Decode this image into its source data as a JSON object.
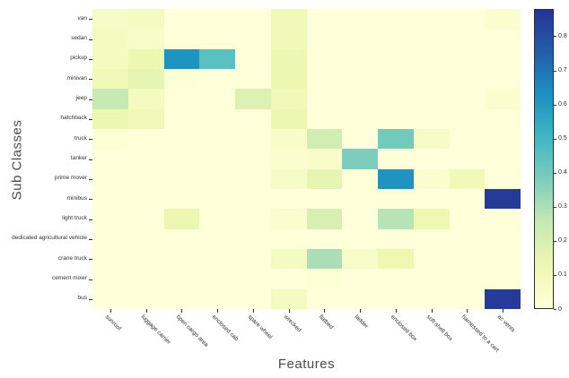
{
  "chart_data": {
    "type": "heatmap",
    "xlabel": "Features",
    "ylabel": "Sub Classes",
    "x_categories": [
      "sunroof",
      "luggage carrier",
      "open cargo area",
      "enclosed cab",
      "spare wheel",
      "wrecked",
      "flatbed",
      "ladder",
      "enclosed box",
      "soft shell box",
      "harnessed to a cart",
      "ac vents"
    ],
    "y_categories": [
      "van",
      "sedan",
      "pickup",
      "minivan",
      "jeep",
      "hatchback",
      "truck",
      "tanker",
      "prime mover",
      "minibus",
      "light truck",
      "dedicated agricultural vehicle",
      "crane truck",
      "cement mixer",
      "bus"
    ],
    "values": [
      [
        0.06,
        0.08,
        0.0,
        0.0,
        0.0,
        0.1,
        0.0,
        0.0,
        0.0,
        0.0,
        0.0,
        0.03
      ],
      [
        0.08,
        0.05,
        0.0,
        0.0,
        0.0,
        0.1,
        0.0,
        0.0,
        0.0,
        0.0,
        0.0,
        0.0
      ],
      [
        0.08,
        0.13,
        0.62,
        0.45,
        0.0,
        0.13,
        0.0,
        0.0,
        0.0,
        0.0,
        0.0,
        0.0
      ],
      [
        0.1,
        0.15,
        0.02,
        0.0,
        0.0,
        0.13,
        0.0,
        0.0,
        0.0,
        0.0,
        0.0,
        0.0
      ],
      [
        0.25,
        0.08,
        0.0,
        0.0,
        0.18,
        0.1,
        0.0,
        0.0,
        0.0,
        0.0,
        0.0,
        0.03
      ],
      [
        0.13,
        0.1,
        0.0,
        0.0,
        0.0,
        0.13,
        0.0,
        0.0,
        0.0,
        0.0,
        0.0,
        0.0
      ],
      [
        0.02,
        0.0,
        0.0,
        0.0,
        0.0,
        0.05,
        0.22,
        0.0,
        0.4,
        0.06,
        0.0,
        0.0
      ],
      [
        0.0,
        0.0,
        0.0,
        0.0,
        0.0,
        0.03,
        0.05,
        0.38,
        0.0,
        0.0,
        0.0,
        0.0
      ],
      [
        0.0,
        0.0,
        0.0,
        0.0,
        0.0,
        0.06,
        0.15,
        0.0,
        0.62,
        0.03,
        0.1,
        0.0
      ],
      [
        0.0,
        0.0,
        0.0,
        0.0,
        0.0,
        0.0,
        0.0,
        0.0,
        0.0,
        0.0,
        0.0,
        0.86
      ],
      [
        0.0,
        0.0,
        0.13,
        0.0,
        0.0,
        0.03,
        0.2,
        0.0,
        0.28,
        0.12,
        0.0,
        0.0
      ],
      [
        0.0,
        0.0,
        0.0,
        0.0,
        0.0,
        0.0,
        0.0,
        0.0,
        0.0,
        0.0,
        0.0,
        0.0
      ],
      [
        0.0,
        0.0,
        0.0,
        0.0,
        0.0,
        0.08,
        0.3,
        0.05,
        0.12,
        0.0,
        0.0,
        0.0
      ],
      [
        0.0,
        0.0,
        0.0,
        0.0,
        0.0,
        0.0,
        0.02,
        0.0,
        0.0,
        0.0,
        0.0,
        0.0
      ],
      [
        0.0,
        0.0,
        0.0,
        0.0,
        0.0,
        0.08,
        0.0,
        0.0,
        0.0,
        0.0,
        0.0,
        0.86
      ]
    ],
    "vmin": 0,
    "vmax": 0.88,
    "colorbar_ticks": [
      0,
      0.1,
      0.2,
      0.3,
      0.4,
      0.5,
      0.6,
      0.7,
      0.8
    ],
    "colormap": "YlGnBu",
    "colormap_stops": [
      "#ffffd9",
      "#edf8b1",
      "#c7e9b4",
      "#7fcdbb",
      "#41b6c4",
      "#1d91c0",
      "#225ea8",
      "#253494"
    ],
    "legend_position": "right",
    "grid": false
  }
}
